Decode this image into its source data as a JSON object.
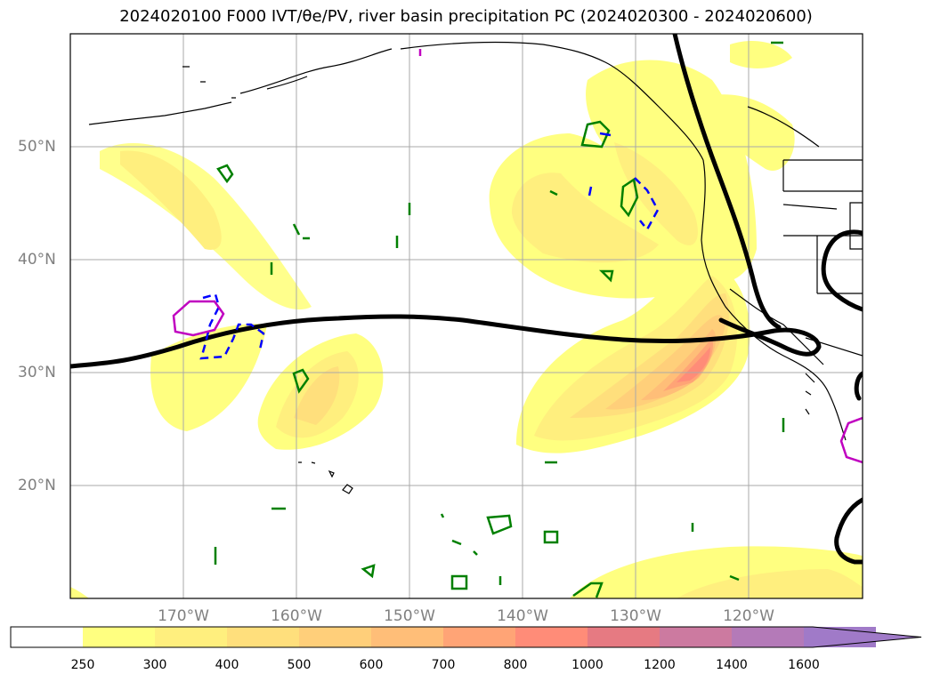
{
  "title": "2024020100 F000 IVT/θe/PV, river basin precipitation PC (2024020300 - 2024020600)",
  "map": {
    "lat_labels": [
      "50°N",
      "40°N",
      "30°N",
      "20°N"
    ],
    "lon_labels": [
      "170°W",
      "160°W",
      "150°W",
      "140°W",
      "130°W",
      "120°W"
    ]
  },
  "colorbar": {
    "levels": [
      "250",
      "300",
      "400",
      "500",
      "600",
      "700",
      "800",
      "1000",
      "1200",
      "1400",
      "1600"
    ],
    "colors": [
      "#ffffff",
      "#ffff80",
      "#ffef7e",
      "#ffdf7c",
      "#ffcf7a",
      "#ffbe78",
      "#ffa476",
      "#ff8c78",
      "#e67a82",
      "#cc7aa0",
      "#b47ab8",
      "#a07ac8"
    ]
  }
}
